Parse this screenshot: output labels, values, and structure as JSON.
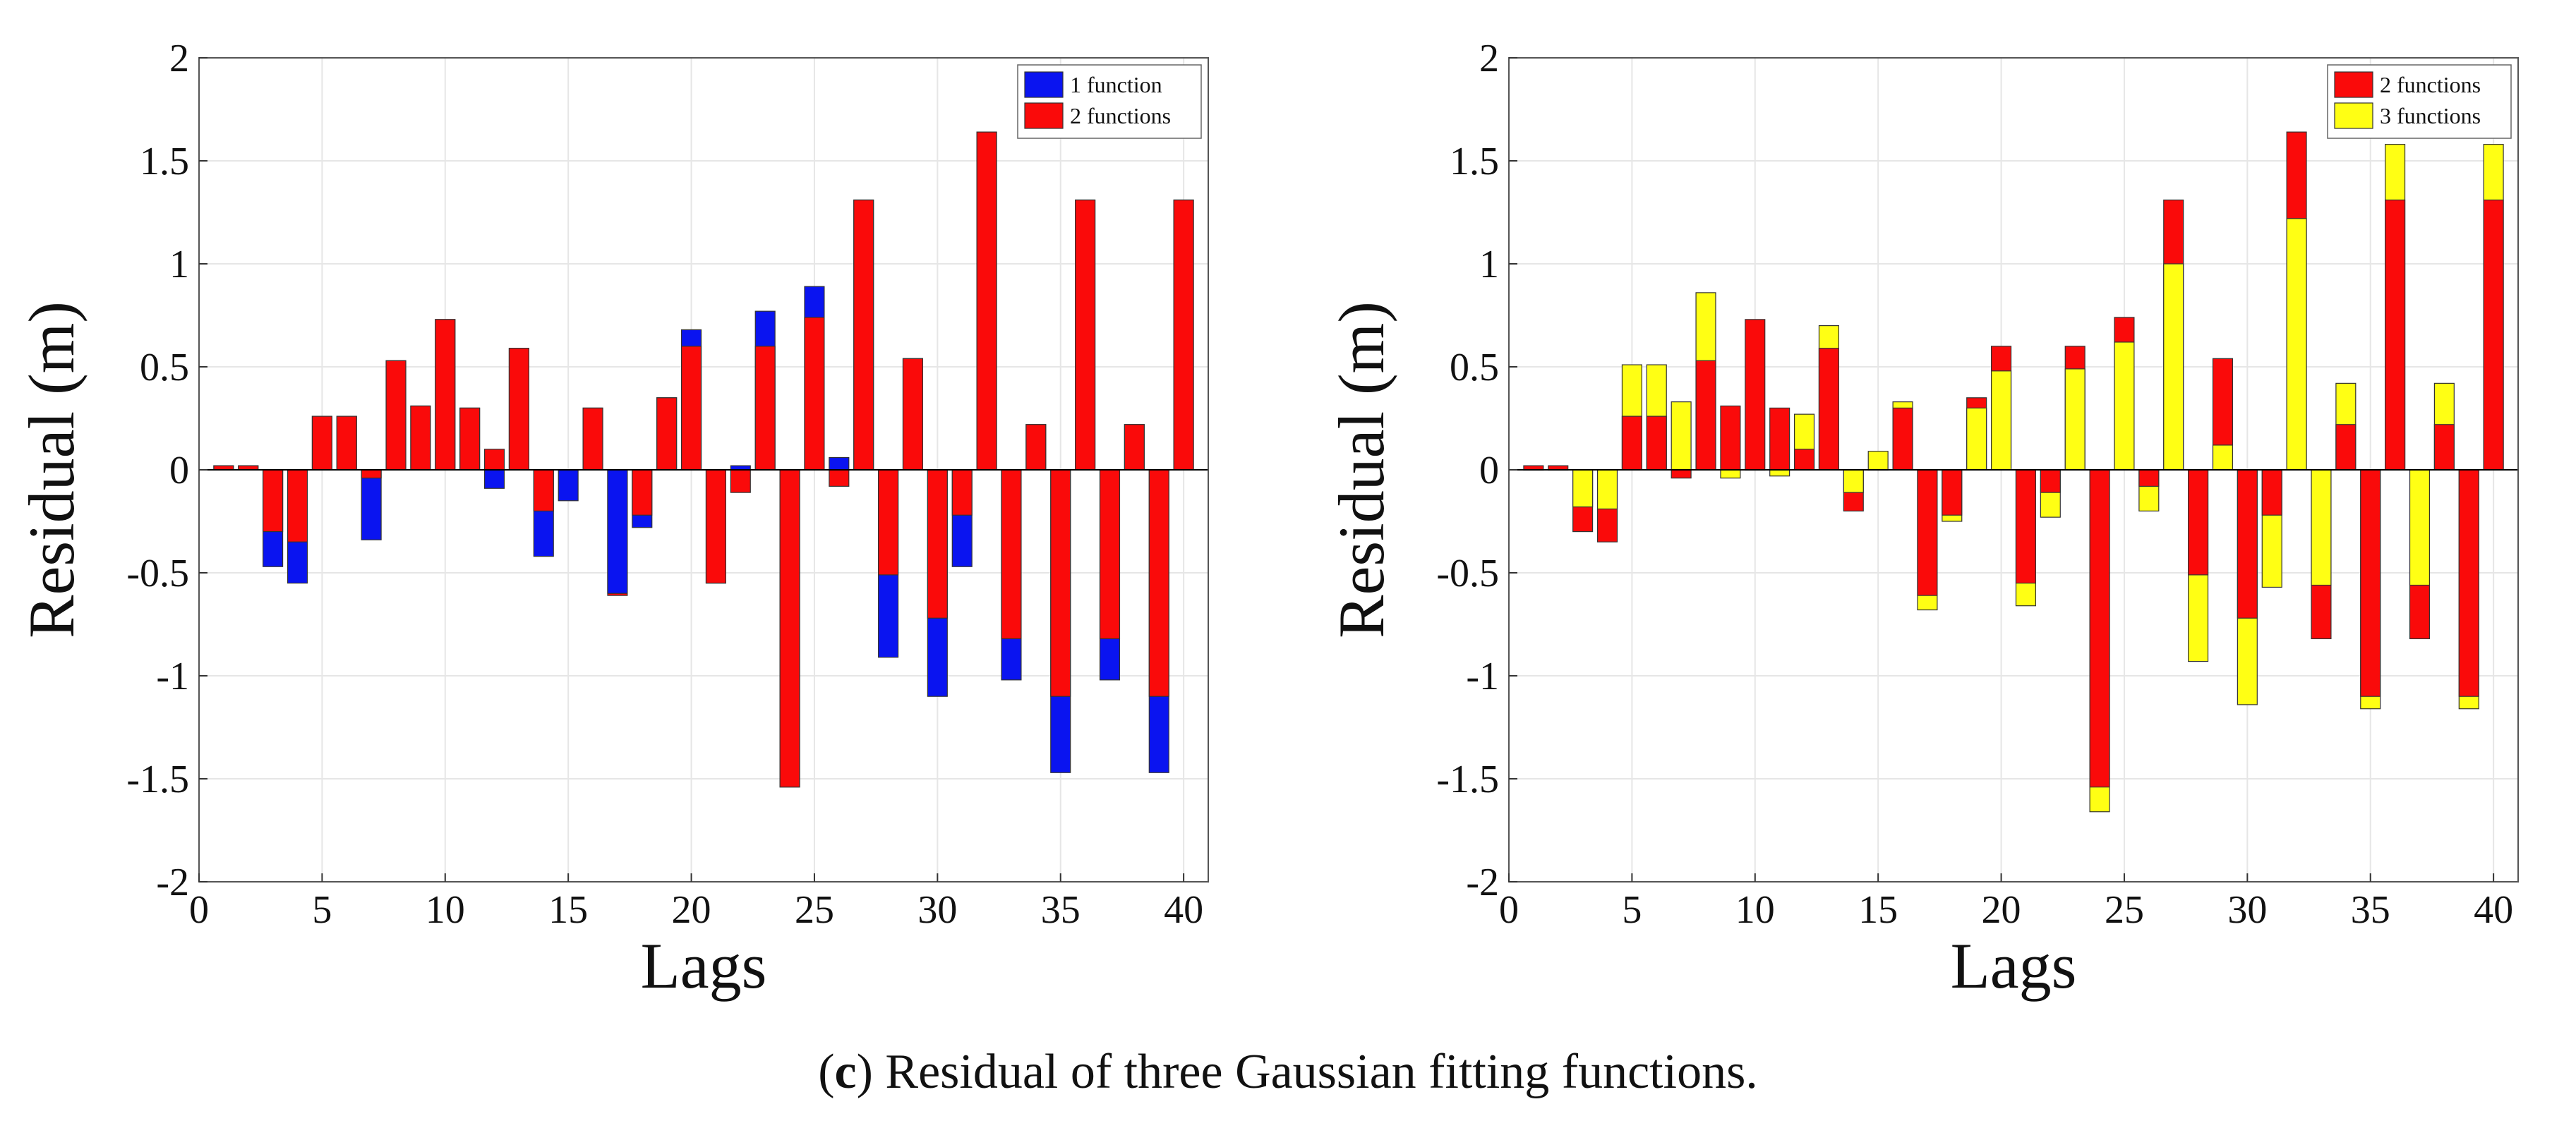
{
  "caption": {
    "letter": "c",
    "text": "Residual of three Gaussian fitting functions."
  },
  "chart_data": [
    {
      "type": "bar",
      "stacking": "overlay",
      "title": "",
      "xlabel": "Lags",
      "ylabel": "Residual (m)",
      "xlim": [
        0,
        41
      ],
      "ylim": [
        -2,
        2
      ],
      "xticks": [
        0,
        5,
        10,
        15,
        20,
        25,
        30,
        35,
        40
      ],
      "yticks": [
        2,
        1.5,
        1,
        0.5,
        0,
        -0.5,
        -1,
        -1.5,
        -2
      ],
      "ytick_labels": [
        "2",
        "1.5",
        "1",
        "0.5",
        "0",
        "-0.5",
        "-1",
        "-1.5",
        "-2"
      ],
      "grid": true,
      "legend_position": "top-right",
      "x": [
        1,
        2,
        3,
        4,
        5,
        6,
        7,
        8,
        9,
        10,
        11,
        12,
        13,
        14,
        15,
        16,
        17,
        18,
        19,
        20,
        21,
        22,
        23,
        24,
        25,
        26,
        27,
        28,
        29,
        30,
        31,
        32,
        33,
        34,
        35,
        36,
        37,
        38,
        39,
        40
      ],
      "series": [
        {
          "name": "1 function",
          "color": "#0a14f0",
          "values": [
            0.02,
            0.02,
            -0.47,
            -0.55,
            0.26,
            0.26,
            -0.34,
            0.53,
            0.31,
            0.73,
            0.3,
            -0.09,
            0.59,
            -0.42,
            -0.15,
            0.3,
            -0.6,
            -0.28,
            0.35,
            0.68,
            -0.55,
            0.02,
            0.77,
            -1.54,
            0.89,
            0.06,
            1.31,
            -0.91,
            0.54,
            -1.1,
            -0.47,
            1.64,
            -1.02,
            0.22,
            -1.47,
            1.31,
            -1.02,
            0.22,
            -1.47,
            1.31
          ]
        },
        {
          "name": "2 functions",
          "color": "#fa0a0a",
          "values": [
            0.02,
            0.02,
            -0.3,
            -0.35,
            0.26,
            0.26,
            -0.04,
            0.53,
            0.31,
            0.73,
            0.3,
            0.1,
            0.59,
            -0.2,
            0.0,
            0.3,
            -0.61,
            -0.22,
            0.35,
            0.6,
            -0.55,
            -0.11,
            0.6,
            -1.54,
            0.74,
            -0.08,
            1.31,
            -0.51,
            0.54,
            -0.72,
            -0.22,
            1.64,
            -0.82,
            0.22,
            -1.1,
            1.31,
            -0.82,
            0.22,
            -1.1,
            1.31
          ]
        }
      ]
    },
    {
      "type": "bar",
      "stacking": "overlay",
      "title": "",
      "xlabel": "Lags",
      "ylabel": "Residual (m)",
      "xlim": [
        0,
        41
      ],
      "ylim": [
        -2,
        2
      ],
      "xticks": [
        0,
        5,
        10,
        15,
        20,
        25,
        30,
        35,
        40
      ],
      "yticks": [
        2,
        1.5,
        1,
        0.5,
        0,
        -0.5,
        -1,
        -1.5,
        -2
      ],
      "ytick_labels": [
        "2",
        "1.5",
        "1",
        "0.5",
        "0",
        "-0.5",
        "-1",
        "-1.5",
        "-2"
      ],
      "grid": true,
      "legend_position": "top-right",
      "x": [
        1,
        2,
        3,
        4,
        5,
        6,
        7,
        8,
        9,
        10,
        11,
        12,
        13,
        14,
        15,
        16,
        17,
        18,
        19,
        20,
        21,
        22,
        23,
        24,
        25,
        26,
        27,
        28,
        29,
        30,
        31,
        32,
        33,
        34,
        35,
        36,
        37,
        38,
        39,
        40
      ],
      "series": [
        {
          "name": "2 functions",
          "color": "#fa0a0a",
          "values": [
            0.02,
            0.02,
            -0.3,
            -0.35,
            0.26,
            0.26,
            -0.04,
            0.53,
            0.31,
            0.73,
            0.3,
            0.1,
            0.59,
            -0.2,
            0.0,
            0.3,
            -0.61,
            -0.22,
            0.35,
            0.6,
            -0.55,
            -0.11,
            0.6,
            -1.54,
            0.74,
            -0.08,
            1.31,
            -0.51,
            0.54,
            -0.72,
            -0.22,
            1.64,
            -0.82,
            0.22,
            -1.1,
            1.31,
            -0.82,
            0.22,
            -1.1,
            1.31
          ]
        },
        {
          "name": "3 functions",
          "color": "#ffff14",
          "values": [
            0.0,
            0.0,
            -0.18,
            -0.19,
            0.51,
            0.51,
            0.33,
            0.86,
            -0.04,
            0.0,
            -0.03,
            0.27,
            0.7,
            -0.11,
            0.09,
            0.33,
            -0.68,
            -0.25,
            0.3,
            0.48,
            -0.66,
            -0.23,
            0.49,
            -1.66,
            0.62,
            -0.2,
            1.0,
            -0.93,
            0.12,
            -1.14,
            -0.57,
            1.22,
            -0.56,
            0.42,
            -1.16,
            1.58,
            -0.56,
            0.42,
            -1.16,
            1.58
          ]
        }
      ]
    }
  ]
}
